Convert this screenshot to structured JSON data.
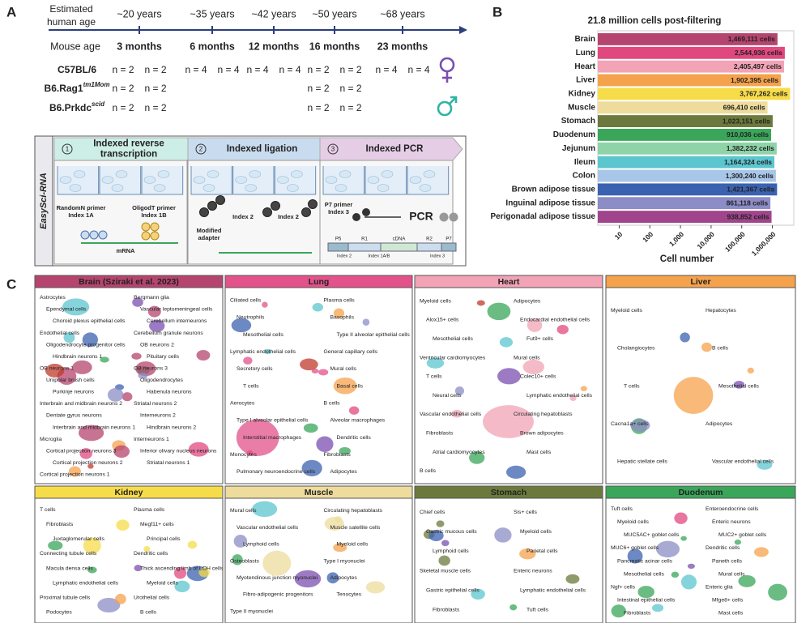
{
  "panel_letters": [
    "A",
    "B",
    "C"
  ],
  "panel_a": {
    "human_age_label": [
      "Estimated",
      "human age"
    ],
    "human_ages": [
      "~20 years",
      "~35 years",
      "~42 years",
      "~50 years",
      "~68 years"
    ],
    "mouse_age_label": "Mouse age",
    "mouse_ages": [
      "3 months",
      "6 months",
      "12 months",
      "16 months",
      "23 months"
    ],
    "female_color": "#7b4fb0",
    "male_color": "#2fb3a3",
    "strains": [
      {
        "name": "C57BL/6",
        "counts": [
          [
            "n = 2",
            "n = 2"
          ],
          [
            "n = 4",
            "n = 4"
          ],
          [
            "n = 4",
            "n = 4"
          ],
          [
            "n = 2",
            "n = 2"
          ],
          [
            "n = 4",
            "n = 4"
          ]
        ]
      },
      {
        "name": "B6.Rag1",
        "superscript": "tm1Mom",
        "counts": [
          [
            "n = 2",
            "n = 2"
          ],
          null,
          null,
          [
            "n = 2",
            "n = 2"
          ],
          null
        ]
      },
      {
        "name": "B6.Prkdc",
        "superscript": "scid",
        "counts": [
          [
            "n = 2",
            "n = 2"
          ],
          null,
          null,
          [
            "n = 2",
            "n = 2"
          ],
          null
        ]
      }
    ],
    "method": "EasySci-RNA",
    "steps": [
      {
        "number": "1",
        "title": [
          "Indexed reverse",
          "transcription"
        ],
        "color": "#cdeee6"
      },
      {
        "number": "2",
        "title": [
          "Indexed ligation"
        ],
        "color": "#c9dcef"
      },
      {
        "number": "3",
        "title": [
          "Indexed PCR"
        ],
        "color": "#e6cde6"
      }
    ],
    "step1_labels": [
      [
        "RandomN primer",
        "Index 1A"
      ],
      [
        "OligodT primer",
        "Index 1B"
      ],
      [
        "mRNA"
      ]
    ],
    "step2_labels": [
      [
        "Modified",
        "adapter"
      ],
      [
        "Index 2"
      ],
      [
        "Index 2"
      ]
    ],
    "step3_labels": [
      [
        "P7 primer",
        "Index 3"
      ],
      [
        "PCR"
      ]
    ],
    "library": {
      "segments": [
        "P5",
        "R1",
        "cDNA",
        "R2",
        "P7"
      ],
      "indexes": [
        "Index 2",
        "Index 1A/B",
        "Index 3"
      ]
    }
  },
  "chart_data": {
    "type": "bar",
    "orientation": "horizontal",
    "title": "21.8 million cells post-filtering",
    "x_label": "Cell number",
    "xscale": "log",
    "categories": [
      "Brain",
      "Lung",
      "Heart",
      "Liver",
      "Kidney",
      "Muscle",
      "Stomach",
      "Duodenum",
      "Jejunum",
      "Ileum",
      "Colon",
      "Brown adipose tissue",
      "Inguinal adipose tissue",
      "Perigonadal adipose tissue"
    ],
    "values": [
      1469111,
      2544936,
      2405497,
      1902395,
      3767262,
      696410,
      1023151,
      910036,
      1382232,
      1164324,
      1300240,
      1421367,
      861118,
      938852
    ],
    "value_labels": [
      "1,469,111 cells",
      "2,544,936 cells",
      "2,405,497 cells",
      "1,902,395 cells",
      "3,767,262 cells",
      "696,410 cells",
      "1,023,151 cells",
      "910,036 cells",
      "1,382,232 cells",
      "1,164,324 cells",
      "1,300,240 cells",
      "1,421,367 cells",
      "861,118 cells",
      "938,852 cells"
    ],
    "colors": [
      "#b5446e",
      "#e0487e",
      "#f2a3b6",
      "#f5a24c",
      "#f7dc4a",
      "#eedc9c",
      "#6b7a3c",
      "#3aa65a",
      "#8fd4a8",
      "#5cc6cf",
      "#a8c6e8",
      "#3b62b0",
      "#8c8dc6",
      "#a0458c"
    ],
    "xlim": [
      2,
      5000000
    ],
    "xticks": [
      10,
      100,
      {
        "value": 1000,
        "label": "1,000"
      },
      {
        "value": 10000,
        "label": "10,000"
      },
      {
        "value": 100000,
        "label": "100,000"
      },
      {
        "value": 1000000,
        "label": "1,000,000"
      }
    ],
    "grid": false
  },
  "panel_c": {
    "panels": [
      {
        "title": "Brain (Sziraki et al. 2023)",
        "color": "#b5446e",
        "labels": [
          "Astrocytes",
          "Bergmann glia",
          "Ependymal cells",
          "Vascular leptomeningeal cells",
          "Choroid plexus epithelial cells",
          "Cerebellum interneurons",
          "Endothelial cells",
          "Cerebellum granule neurons",
          "Oligodendrocyte progenitor cells",
          "OB neurons 2",
          "Hindbrain neurons 1",
          "Pituitary cells",
          "OB neurons 1",
          "OB neurons 3",
          "Unipolar brush cells",
          "Oligodendrocytes",
          "Purkinje neurons",
          "Habenula neurons",
          "Interbrain and midbrain neurons 2",
          "Striatal neurons 2",
          "Dentate gyrus neurons",
          "Interneurons 2",
          "Interbrain and midbrain neurons 1",
          "Hindbrain neurons 2",
          "Microglia",
          "Interneurons 1",
          "Cortical projection neurons 3",
          "Inferior olivary nucleus neurons",
          "Cortical projection neurons 2",
          "Striatal neurons 1",
          "Cortical projection neurons 1"
        ]
      },
      {
        "title": "Lung",
        "color": "#e3528a",
        "labels": [
          "Ciliated cells",
          "Plasma cells",
          "Neutrophils",
          "Basophils",
          "Mesothelial cells",
          "Type II alveolar epithelial cells",
          "Lymphatic endothelial cells",
          "General capillary cells",
          "Secretory cells",
          "Mural cells",
          "T cells",
          "Basal cells",
          "Aerocytes",
          "B cells",
          "Type I alveolar epithelial cells",
          "Alveolar macrophages",
          "Interstitial macrophages",
          "Dendritic cells",
          "Monocytes",
          "Fibroblasts",
          "Pulmonary neuroendocrine cells",
          "Adipocytes"
        ]
      },
      {
        "title": "Heart",
        "color": "#f2a3b6",
        "labels": [
          "Myeloid cells",
          "Adipocytes",
          "Alox15+ cells",
          "Endocardial endothelial cells",
          "Mesothelial cells",
          "Fut9+ cells",
          "Ventricular cardiomyocytes",
          "Mural cells",
          "T cells",
          "Colec10+ cells",
          "Neural cells",
          "Lymphatic endothelial cells",
          "Vascular endothelial cells",
          "Circulating hepatoblasts",
          "Fibroblasts",
          "Brown adipocytes",
          "Atrial cardiomyocytes",
          "Mast cells",
          "B cells"
        ]
      },
      {
        "title": "Liver",
        "color": "#f5a24c",
        "labels": [
          "Myeloid cells",
          "Hepatocytes",
          "Cholangiocytes",
          "B cells",
          "T cells",
          "Mesothelial cells",
          "Cacna1a+ cells",
          "Adipocytes",
          "Hepatic stellate cells",
          "Vascular endothelial cells"
        ]
      },
      {
        "title": "Kidney",
        "color": "#f7dc4a",
        "labels": [
          "T cells",
          "Plasma cells",
          "Fibroblasts",
          "Megf11+ cells",
          "Juxtaglomerular cells",
          "Principal cells",
          "Connecting tubule cells",
          "Dendritic cells",
          "Macula densa cells",
          "Thick ascending limb of LOH cells",
          "Lymphatic endothelial cells",
          "Myeloid cells",
          "Proximal tubule cells",
          "Urothelial cells",
          "Podocytes",
          "B cells"
        ]
      },
      {
        "title": "Muscle",
        "color": "#eedc9c",
        "labels": [
          "Mural cells",
          "Circulating hepatoblasts",
          "Vascular endothelial cells",
          "Muscle satellite cells",
          "Lymphoid cells",
          "Myeloid cells",
          "Osteoblasts",
          "Type I myonuclei",
          "Myotendinous junction myonuclei",
          "Adipocytes",
          "Fibro-adipogenic progenitors",
          "Tenocytes",
          "Type II myonuclei"
        ]
      },
      {
        "title": "Stomach",
        "color": "#6b7a3c",
        "labels": [
          "Chief cells",
          "Sis+ cells",
          "Gastric mucous cells",
          "Myeloid cells",
          "Lymphoid cells",
          "Parietal cells",
          "Skeletal muscle cells",
          "Enteric neurons",
          "Gastric epithelial cells",
          "Lymphatic endothelial cells",
          "Fibroblasts",
          "Tuft cells"
        ]
      },
      {
        "title": "Duodenum",
        "color": "#3aa65a",
        "labels": [
          "Tuft cells",
          "Enteroendocrine cells",
          "Myeloid cells",
          "Enteric neurons",
          "MUC5AC+ goblet cells",
          "MUC2+ goblet cells",
          "MUC6+ goblet cells",
          "Dendritic cells",
          "Pancreatic acinar cells",
          "Paneth cells",
          "Mesothelial cells",
          "Mural cells",
          "Ngf+ cells",
          "Enteric glia",
          "Intestinal epithelial cells",
          "Mfge8+ cells",
          "Fibroblasts",
          "Mast cells"
        ]
      }
    ]
  }
}
